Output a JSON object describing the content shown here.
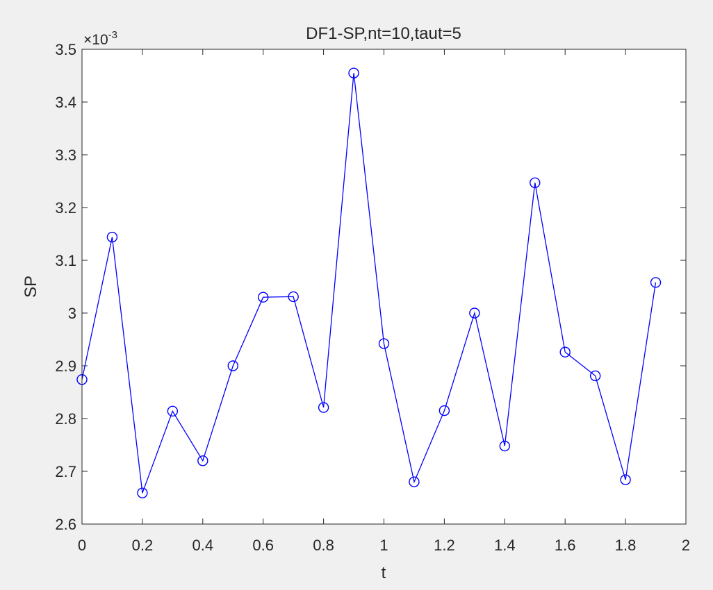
{
  "chart_data": {
    "type": "line",
    "title": "DF1-SP,nt=10,taut=5",
    "xlabel": "t",
    "ylabel": "SP",
    "y_exponent_label": "×10",
    "y_exponent_power": "-3",
    "xlim": [
      0,
      2
    ],
    "ylim": [
      2.6,
      3.5
    ],
    "x_ticks": [
      0,
      0.2,
      0.4,
      0.6,
      0.8,
      1,
      1.2,
      1.4,
      1.6,
      1.8,
      2
    ],
    "x_tick_labels": [
      "0",
      "0.2",
      "0.4",
      "0.6",
      "0.8",
      "1",
      "1.2",
      "1.4",
      "1.6",
      "1.8",
      "2"
    ],
    "y_ticks": [
      2.6,
      2.7,
      2.8,
      2.9,
      3.0,
      3.1,
      3.2,
      3.3,
      3.4,
      3.5
    ],
    "y_tick_labels": [
      "2.6",
      "2.7",
      "2.8",
      "2.9",
      "3",
      "3.1",
      "3.2",
      "3.3",
      "3.4",
      "3.5"
    ],
    "grid": false,
    "series": [
      {
        "color": "#0000ff",
        "marker": "circle",
        "x": [
          0,
          0.1,
          0.2,
          0.3,
          0.4,
          0.5,
          0.6,
          0.7,
          0.8,
          0.9,
          1.0,
          1.1,
          1.2,
          1.3,
          1.4,
          1.5,
          1.6,
          1.7,
          1.8,
          1.9
        ],
        "values": [
          2.874,
          3.144,
          2.659,
          2.814,
          2.72,
          2.9,
          3.03,
          3.031,
          2.821,
          3.455,
          2.942,
          2.68,
          2.815,
          3.0,
          2.748,
          3.247,
          2.926,
          2.881,
          2.684,
          3.058
        ]
      }
    ]
  }
}
